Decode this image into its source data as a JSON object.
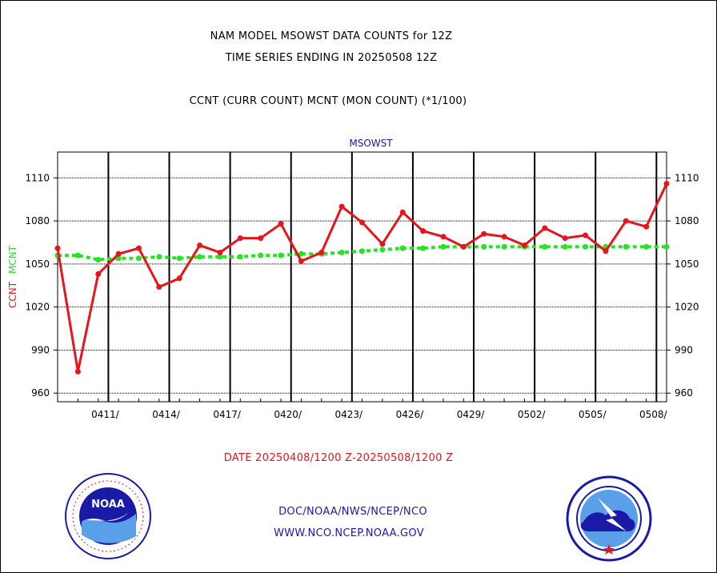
{
  "header": {
    "line1": "NAM MODEL MSOWST DATA COUNTS for 12Z",
    "line2": "TIME SERIES ENDING IN 20250508 12Z",
    "line3": "CCNT (CURR COUNT) MCNT (MON COUNT) (*1/100)"
  },
  "chart_data": {
    "type": "line",
    "title": "MSOWST",
    "ylabel_ccnt": "CCNT",
    "ylabel_mcnt": "MCNT",
    "xlabel": "DATE 20250408/1200 Z-20250508/1200 Z",
    "ylim": [
      954,
      1128
    ],
    "yticks": [
      960,
      990,
      1020,
      1050,
      1080,
      1110
    ],
    "ytick_labels": [
      "960",
      "990",
      "1020",
      "1050",
      "1080",
      "1110"
    ],
    "xticks": [
      "0411/",
      "0414/",
      "0417/",
      "0420/",
      "0423/",
      "0426/",
      "0429/",
      "0502/",
      "0505/",
      "0508/"
    ],
    "grid": true,
    "colors": {
      "ccnt": "#e8141c",
      "mcnt": "#22e622",
      "labels": "#1a1aa8"
    },
    "series": [
      {
        "name": "CCNT",
        "values": [
          1061,
          975,
          1043,
          1057,
          1061,
          1034,
          1040,
          1063,
          1058,
          1068,
          1068,
          1078,
          1052,
          1058,
          1090,
          1079,
          1064,
          1086,
          1073,
          1069,
          1062,
          1071,
          1069,
          1063,
          1075,
          1068,
          1070,
          1059,
          1080,
          1076,
          1106
        ]
      },
      {
        "name": "MCNT",
        "values": [
          1056,
          1056,
          1053,
          1054,
          1054,
          1055,
          1054,
          1055,
          1055,
          1055,
          1056,
          1056,
          1057,
          1057,
          1058,
          1059,
          1060,
          1061,
          1061,
          1062,
          1062,
          1062,
          1062,
          1062,
          1062,
          1062,
          1062,
          1062,
          1062,
          1062,
          1062
        ]
      }
    ]
  },
  "footer": {
    "links": [
      "DOC/NOAA/NWS/NCEP/NCO",
      "WWW.NCO.NCEP.NOAA.GOV"
    ],
    "noaa_logo_text": "NOAA"
  }
}
